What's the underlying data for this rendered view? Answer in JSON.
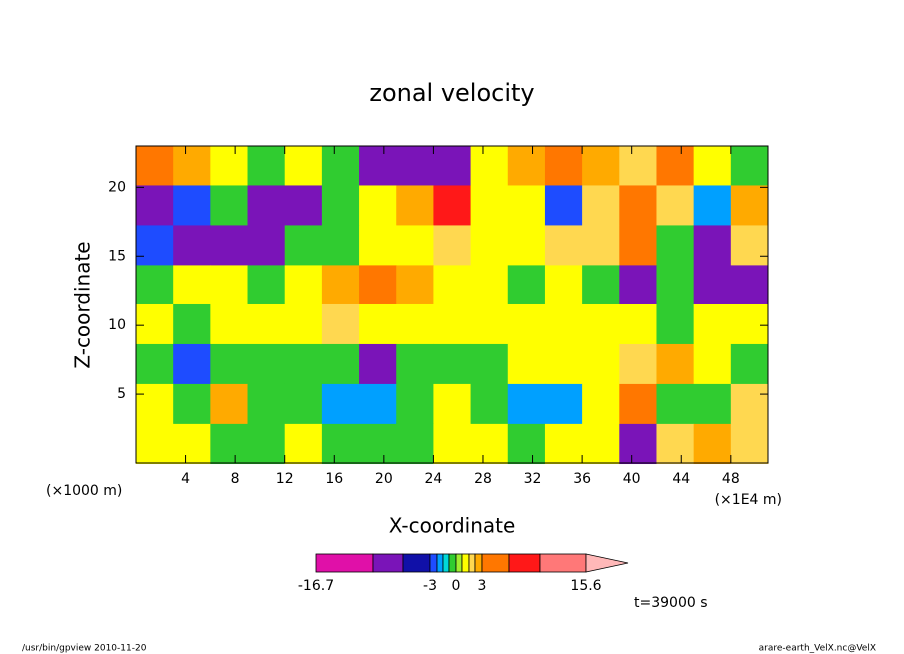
{
  "chart_data": {
    "type": "heatmap",
    "title": "zonal velocity",
    "x_label": "X-coordinate",
    "y_label": "Z-coordinate",
    "x_unit_left": "(×1000 m)",
    "x_unit_right": "(×1E4 m)",
    "time_label": "t=39000 s",
    "footer_left": "/usr/bin/gpview   2010-11-20",
    "footer_right": "arare-earth_VelX.nc@VelX",
    "xlim": [
      0,
      51
    ],
    "ylim": [
      0,
      23
    ],
    "xticks": [
      4,
      8,
      12,
      16,
      20,
      24,
      28,
      32,
      36,
      40,
      44,
      48
    ],
    "yticks": [
      5,
      10,
      15,
      20
    ],
    "x": [
      1.5,
      4.5,
      7.5,
      10.5,
      13.5,
      16.5,
      19.5,
      22.5,
      25.5,
      28.5,
      31.5,
      34.5,
      37.5,
      40.5,
      43.5,
      46.5,
      49.5
    ],
    "y": [
      21.6,
      18.7,
      15.8,
      12.9,
      10.1,
      7.2,
      4.3,
      1.4
    ],
    "z": [
      [
        4,
        2.5,
        1.2,
        -0.5,
        1.2,
        -0.5,
        -7,
        -8,
        -7,
        1.2,
        2.5,
        4,
        2.5,
        1.8,
        4,
        1.2,
        -0.5
      ],
      [
        -7,
        -2.5,
        -0.5,
        -7,
        -7,
        -0.5,
        1.2,
        2.5,
        8,
        1.2,
        1.2,
        -2.5,
        1.8,
        4,
        1.8,
        -1.8,
        2.5
      ],
      [
        -2.5,
        -7,
        -7,
        -7,
        -0.5,
        -0.5,
        1.2,
        1.2,
        1.8,
        1.2,
        1.2,
        1.8,
        1.8,
        4,
        -0.5,
        -7,
        1.8
      ],
      [
        -0.5,
        1.2,
        1.2,
        -0.5,
        1.2,
        2.5,
        4,
        2.5,
        1.2,
        1.2,
        -0.5,
        1.2,
        -0.5,
        -7,
        -0.5,
        -7,
        -7
      ],
      [
        1.2,
        -0.5,
        1.2,
        1.2,
        1.2,
        1.8,
        1.2,
        1.2,
        1.2,
        1.2,
        1.2,
        1.2,
        1.2,
        1.2,
        -0.5,
        1.2,
        1.2
      ],
      [
        -0.5,
        -2.5,
        -0.5,
        -0.5,
        -0.5,
        -0.5,
        -7,
        -0.5,
        -0.5,
        -0.5,
        1.2,
        1.2,
        1.2,
        1.8,
        2.5,
        1.2,
        -0.5
      ],
      [
        1.2,
        -0.5,
        2.5,
        -0.5,
        -0.5,
        -1.8,
        -1.8,
        -0.5,
        1.2,
        -0.5,
        -1.8,
        -1.8,
        1.2,
        4,
        -0.5,
        -0.5,
        1.8
      ],
      [
        1.2,
        1.2,
        -0.5,
        -0.5,
        1.2,
        -0.5,
        -0.5,
        -0.5,
        1.2,
        1.2,
        -0.5,
        1.2,
        1.2,
        -7,
        1.8,
        2.5,
        1.8
      ]
    ],
    "levels": [
      -16.7,
      -10,
      -6,
      -3,
      -2,
      -1.5,
      -1,
      0,
      1,
      1.5,
      2,
      3,
      6,
      10,
      15.6
    ],
    "colors": [
      "#e010a8",
      "#7a14b8",
      "#1010a8",
      "#1e4cff",
      "#00a0ff",
      "#00d8d8",
      "#30cc30",
      "#a0ee30",
      "#ffff00",
      "#ffd850",
      "#ffaa00",
      "#ff7700",
      "#ff1818",
      "#ff7878",
      "#ffb8b8"
    ],
    "colorbar_ticks": [
      -16.7,
      -3,
      0,
      3,
      15.6
    ]
  }
}
